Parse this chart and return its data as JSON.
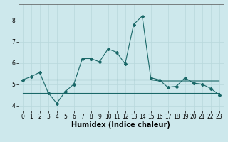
{
  "xlabel": "Humidex (Indice chaleur)",
  "background_color": "#cde8ec",
  "grid_color": "#b8d8dc",
  "line_color": "#1a6868",
  "x": [
    0,
    1,
    2,
    3,
    4,
    5,
    6,
    7,
    8,
    9,
    10,
    11,
    12,
    13,
    14,
    15,
    16,
    17,
    18,
    19,
    20,
    21,
    22,
    23
  ],
  "y_main": [
    5.2,
    5.35,
    5.55,
    4.6,
    4.1,
    4.65,
    5.0,
    6.2,
    6.2,
    6.05,
    6.65,
    6.5,
    5.95,
    7.8,
    8.2,
    5.3,
    5.2,
    4.85,
    4.9,
    5.3,
    5.05,
    5.0,
    4.8,
    4.5
  ],
  "y_upper": [
    5.2,
    5.2,
    5.2,
    5.2,
    5.2,
    5.2,
    5.2,
    5.2,
    5.2,
    5.2,
    5.2,
    5.2,
    5.2,
    5.2,
    5.2,
    5.2,
    5.15,
    5.15,
    5.15,
    5.15,
    5.15,
    5.15,
    5.15,
    5.15
  ],
  "y_lower": [
    4.6,
    4.6,
    4.6,
    4.6,
    4.6,
    4.6,
    4.6,
    4.6,
    4.6,
    4.6,
    4.6,
    4.6,
    4.6,
    4.6,
    4.6,
    4.6,
    4.6,
    4.6,
    4.6,
    4.6,
    4.6,
    4.6,
    4.6,
    4.6
  ],
  "ylim": [
    3.75,
    8.75
  ],
  "xlim": [
    -0.5,
    23.5
  ],
  "yticks": [
    4,
    5,
    6,
    7,
    8
  ],
  "xticks": [
    0,
    1,
    2,
    3,
    4,
    5,
    6,
    7,
    8,
    9,
    10,
    11,
    12,
    13,
    14,
    15,
    16,
    17,
    18,
    19,
    20,
    21,
    22,
    23
  ],
  "tick_fontsize": 5.5,
  "label_fontsize": 7.0,
  "linewidth": 0.8,
  "markersize": 2.0
}
